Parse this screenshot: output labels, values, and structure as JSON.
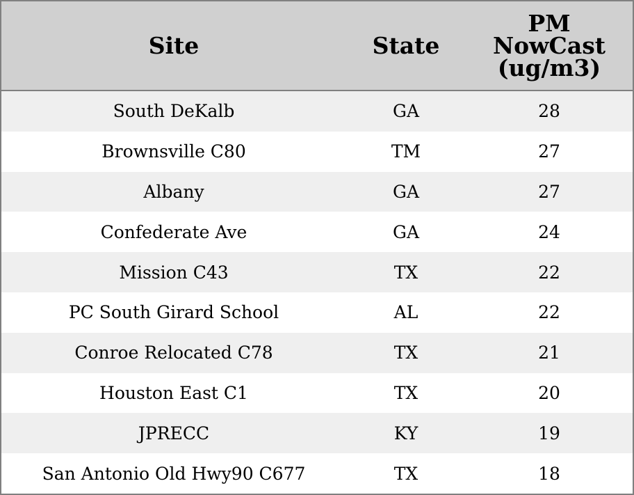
{
  "chart_data": {
    "type": "table",
    "columns": [
      "Site",
      "State",
      "PM NowCast (ug/m3)"
    ],
    "header_lines": [
      [
        "Site"
      ],
      [
        "State"
      ],
      [
        "PM",
        "NowCast",
        "(ug/m3)"
      ]
    ],
    "rows": [
      {
        "site": "South DeKalb",
        "state": "GA",
        "pm": "28"
      },
      {
        "site": "Brownsville C80",
        "state": "TM",
        "pm": "27"
      },
      {
        "site": "Albany",
        "state": "GA",
        "pm": "27"
      },
      {
        "site": "Confederate Ave",
        "state": "GA",
        "pm": "24"
      },
      {
        "site": "Mission C43",
        "state": "TX",
        "pm": "22"
      },
      {
        "site": "PC South Girard School",
        "state": "AL",
        "pm": "22"
      },
      {
        "site": "Conroe Relocated C78",
        "state": "TX",
        "pm": "21"
      },
      {
        "site": "Houston East C1",
        "state": "TX",
        "pm": "20"
      },
      {
        "site": "JPRECC",
        "state": "KY",
        "pm": "19"
      },
      {
        "site": "San Antonio Old Hwy90 C677",
        "state": "TX",
        "pm": "18"
      }
    ]
  },
  "colors": {
    "header_bg": "#d0d0d0",
    "row_stripe": "#efefef",
    "row_plain": "#ffffff",
    "border": "#808080"
  }
}
